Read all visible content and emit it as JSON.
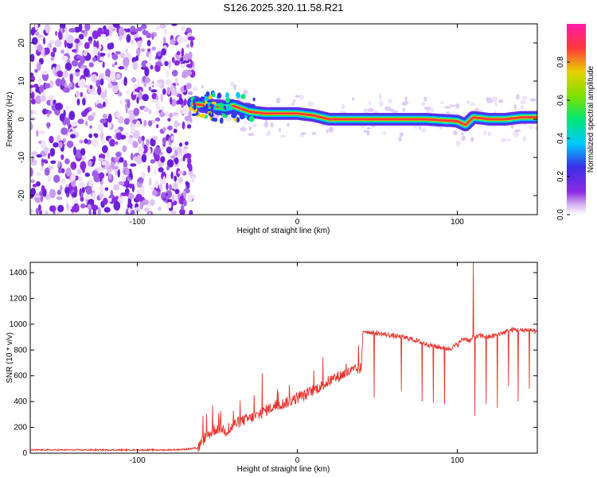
{
  "title": "S126.2025.320.11.58.R21",
  "chart_data": [
    {
      "type": "heatmap",
      "title": "S126.2025.320.11.58.R21",
      "xlabel": "Height of straight line (km)",
      "ylabel": "Frequency (Hz)",
      "xlim": [
        -167,
        150
      ],
      "ylim": [
        -25,
        25
      ],
      "xticks": [
        -100,
        0,
        100
      ],
      "xtick_labels": [
        "-100",
        "0",
        "100"
      ],
      "yticks": [
        -20,
        -10,
        0,
        10,
        20
      ],
      "ytick_labels": [
        "-20",
        "-10",
        "0",
        "10",
        "20"
      ],
      "grid": false,
      "noise_region_x": [
        -167,
        -65
      ],
      "ridge": {
        "x": [
          -65,
          -55,
          -45,
          -40,
          -30,
          -20,
          -10,
          0,
          10,
          20,
          40,
          60,
          80,
          100,
          105,
          110,
          120,
          130,
          140,
          150
        ],
        "freq": [
          4,
          3.5,
          3,
          3.5,
          2,
          1.5,
          1.5,
          1.5,
          1,
          0,
          0,
          0,
          0,
          -0.5,
          -1.5,
          0.5,
          0,
          0,
          0.5,
          0.5
        ]
      },
      "colorbar": {
        "label": "Normalized spectral amplitude",
        "range": [
          0,
          1
        ],
        "ticks": [
          0.0,
          0.2,
          0.4,
          0.6,
          0.8
        ],
        "tick_labels": [
          "0.0",
          "0.2",
          "0.4",
          "0.6",
          "0.8"
        ],
        "colors": [
          "#ffffff",
          "#d9b8f2",
          "#8a2be2",
          "#3a2ee6",
          "#00c8ff",
          "#00e676",
          "#7ee000",
          "#e8d000",
          "#ff3a3a",
          "#ff1aa8"
        ]
      }
    },
    {
      "type": "line",
      "xlabel": "Height of straight line (km)",
      "ylabel": "SNR (10 * v/v)",
      "xlim": [
        -167,
        150
      ],
      "ylim": [
        0,
        1480
      ],
      "xticks": [
        -100,
        0,
        100
      ],
      "xtick_labels": [
        "-100",
        "0",
        "100"
      ],
      "yticks": [
        0,
        200,
        400,
        600,
        800,
        1000,
        1200,
        1400
      ],
      "ytick_labels": [
        "0",
        "200",
        "400",
        "600",
        "800",
        "1000",
        "1200",
        "1400"
      ],
      "grid": false,
      "color": "#e8332c",
      "series": [
        {
          "name": "SNR",
          "x": [
            -167,
            -150,
            -120,
            -100,
            -80,
            -70,
            -62,
            -58,
            -55,
            -52,
            -48,
            -45,
            -42,
            -40,
            -35,
            -30,
            -25,
            -20,
            -15,
            -10,
            -5,
            0,
            5,
            10,
            15,
            20,
            25,
            30,
            35,
            40,
            41,
            45,
            50,
            55,
            60,
            65,
            70,
            75,
            80,
            85,
            90,
            95,
            100,
            103,
            105,
            108,
            110,
            115,
            120,
            125,
            130,
            135,
            140,
            145,
            150
          ],
          "y": [
            25,
            25,
            25,
            25,
            25,
            30,
            40,
            120,
            150,
            180,
            200,
            170,
            180,
            220,
            250,
            270,
            290,
            330,
            360,
            380,
            400,
            430,
            450,
            490,
            520,
            560,
            590,
            620,
            640,
            660,
            950,
            940,
            930,
            920,
            910,
            900,
            890,
            870,
            850,
            830,
            820,
            810,
            840,
            880,
            890,
            870,
            900,
            910,
            900,
            920,
            940,
            960,
            950,
            960,
            940
          ]
        }
      ],
      "spikes": [
        {
          "x": -53,
          "y": 370
        },
        {
          "x": -48,
          "y": 330
        },
        {
          "x": -40,
          "y": 330
        },
        {
          "x": -27,
          "y": 450
        },
        {
          "x": -22,
          "y": 620
        },
        {
          "x": -12,
          "y": 470
        },
        {
          "x": -5,
          "y": 530
        },
        {
          "x": 48,
          "y": 430
        },
        {
          "x": 65,
          "y": 480
        },
        {
          "x": 78,
          "y": 400
        },
        {
          "x": 85,
          "y": 390
        },
        {
          "x": 92,
          "y": 380
        },
        {
          "x": 110,
          "y": 1480
        },
        {
          "x": 111,
          "y": 290
        },
        {
          "x": 118,
          "y": 380
        },
        {
          "x": 125,
          "y": 350
        },
        {
          "x": 132,
          "y": 520
        },
        {
          "x": 138,
          "y": 400
        },
        {
          "x": 145,
          "y": 500
        }
      ]
    }
  ]
}
